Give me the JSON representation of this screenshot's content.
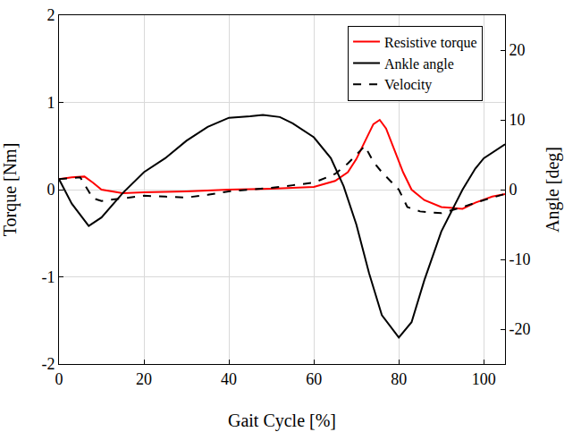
{
  "chart_data": {
    "type": "line",
    "x_label": "Gait Cycle [%]",
    "y_label": "Torque [Nm]",
    "y2_label": "Angle [deg]",
    "xlim": [
      0,
      105
    ],
    "xticks": [
      0,
      20,
      40,
      60,
      80,
      100
    ],
    "ylim": [
      -2,
      2
    ],
    "yticks": [
      -2,
      -1,
      0,
      1,
      2
    ],
    "y2lim": [
      -25,
      25
    ],
    "y2ticks": [
      -20,
      -10,
      0,
      10,
      20
    ],
    "grid": true,
    "legend": "upper right",
    "series": [
      {
        "name": "Resistive torque",
        "color": "#ff0000",
        "line_style": "solid",
        "axis": "y",
        "x": [
          0,
          3,
          6,
          8,
          10,
          15,
          20,
          30,
          40,
          50,
          60,
          65,
          68,
          70,
          72,
          74,
          75.5,
          77,
          79,
          81,
          83,
          86,
          90,
          95,
          98,
          102,
          105
        ],
        "values": [
          0.12,
          0.14,
          0.15,
          0.08,
          0.0,
          -0.04,
          -0.03,
          -0.02,
          0.0,
          0.01,
          0.03,
          0.1,
          0.2,
          0.35,
          0.55,
          0.75,
          0.8,
          0.7,
          0.45,
          0.2,
          0.0,
          -0.12,
          -0.2,
          -0.22,
          -0.15,
          -0.08,
          -0.05
        ]
      },
      {
        "name": "Ankle angle",
        "color": "#000000",
        "line_style": "solid",
        "axis": "y2",
        "x": [
          0,
          3,
          7,
          10,
          15,
          20,
          25,
          30,
          35,
          40,
          45,
          48,
          52,
          55,
          60,
          64,
          67,
          70,
          73,
          76,
          80,
          83,
          86,
          90,
          95,
          98,
          100,
          105
        ],
        "values": [
          1.5,
          -2,
          -5.2,
          -4,
          -0.5,
          2.5,
          4.5,
          7,
          9,
          10.3,
          10.5,
          10.7,
          10.4,
          9.5,
          7.5,
          4.5,
          0.5,
          -5,
          -12,
          -18,
          -21.2,
          -19,
          -13,
          -6,
          0,
          3,
          4.5,
          6.5
        ]
      },
      {
        "name": "Velocity",
        "color": "#000000",
        "line_style": "dash",
        "axis": "y",
        "x": [
          0,
          5,
          8,
          10,
          15,
          20,
          25,
          30,
          35,
          40,
          45,
          50,
          55,
          60,
          65,
          68,
          70,
          72,
          74,
          76,
          78,
          80,
          82,
          85,
          90,
          95,
          100,
          105
        ],
        "values": [
          0.12,
          0.14,
          -0.1,
          -0.13,
          -0.1,
          -0.07,
          -0.08,
          -0.09,
          -0.06,
          -0.02,
          0.0,
          0.02,
          0.05,
          0.08,
          0.18,
          0.3,
          0.4,
          0.5,
          0.32,
          0.2,
          0.1,
          0.0,
          -0.2,
          -0.25,
          -0.27,
          -0.2,
          -0.12,
          -0.05
        ]
      }
    ]
  }
}
